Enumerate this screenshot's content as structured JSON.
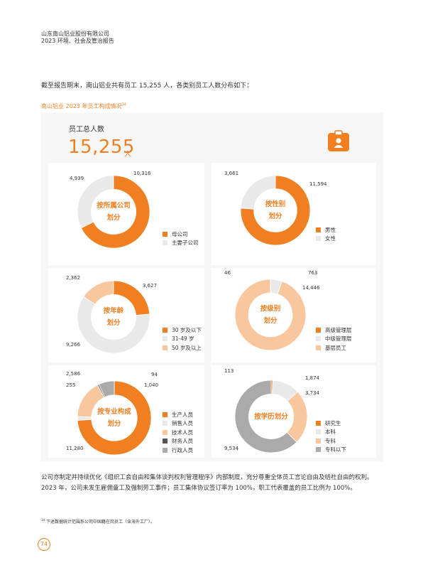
{
  "header": {
    "company": "山东南山铝业股份有限公司",
    "report": "2023 环境、社会及管治报告"
  },
  "intro": "截至报告期末，南山铝业共有员工 15,255 人，各类别员工人数分布如下：",
  "section_title": "南山铝业 2023 年员工构成情况",
  "section_note_ref": "34",
  "total": {
    "label": "员工总人数",
    "value": "15,255",
    "unit": "人",
    "icon": "employee-badge-icon"
  },
  "colors": {
    "orange": "#f07f21",
    "light_gray": "#e9e9e9",
    "peach": "#f9c79e",
    "dark_gray": "#888888",
    "mid_gray": "#b4b4b4"
  },
  "charts": {
    "company": {
      "title": "按所属公司\n划分",
      "segments": [
        {
          "name": "母公司",
          "value": 10316,
          "label": "10,316",
          "color": "#f07f21"
        },
        {
          "name": "主要子公司",
          "value": 4939,
          "label": "4,939",
          "color": "#e9e9e9"
        }
      ]
    },
    "gender": {
      "title": "按性别\n划分",
      "segments": [
        {
          "name": "男性",
          "value": 11594,
          "label": "11,594",
          "color": "#f07f21"
        },
        {
          "name": "女性",
          "value": 3661,
          "label": "3,661",
          "color": "#e9e9e9"
        }
      ]
    },
    "age": {
      "title": "按年龄\n划分",
      "segments": [
        {
          "name": "30 岁及以下",
          "value": 3627,
          "label": "3,627",
          "color": "#f07f21"
        },
        {
          "name": "31-49 岁",
          "value": 9266,
          "label": "9,266",
          "color": "#e9e9e9"
        },
        {
          "name": "50 岁及以上",
          "value": 2362,
          "label": "2,362",
          "color": "#f9c79e"
        }
      ]
    },
    "level": {
      "title": "按级别\n划分",
      "segments": [
        {
          "name": "高级管理层",
          "value": 46,
          "label": "46",
          "color": "#f07f21"
        },
        {
          "name": "中级管理层",
          "value": 763,
          "label": "763",
          "color": "#e9e9e9"
        },
        {
          "name": "基层员工",
          "value": 14446,
          "label": "14,446",
          "color": "#f9c79e"
        }
      ]
    },
    "profession": {
      "title": "按专业构成\n划分",
      "segments": [
        {
          "name": "生产人员",
          "value": 11280,
          "label": "11,280",
          "color": "#f07f21"
        },
        {
          "name": "销售人员",
          "value": 255,
          "label": "255",
          "color": "#e9e9e9"
        },
        {
          "name": "技术人员",
          "value": 2586,
          "label": "2,586",
          "color": "#f9c79e"
        },
        {
          "name": "财务人员",
          "value": 94,
          "label": "94",
          "color": "#555555"
        },
        {
          "name": "行政人员",
          "value": 1040,
          "label": "1,040",
          "color": "#aaaaaa"
        }
      ]
    },
    "education": {
      "title": "按学历划分",
      "segments": [
        {
          "name": "研究生",
          "value": 113,
          "label": "113",
          "color": "#f07f21"
        },
        {
          "name": "本科",
          "value": 1874,
          "label": "1,874",
          "color": "#e9e9e9"
        },
        {
          "name": "专科",
          "value": 3734,
          "label": "3,734",
          "color": "#f9c79e"
        },
        {
          "name": "专科以下",
          "value": 9534,
          "label": "9,534",
          "color": "#aaaaaa"
        }
      ]
    }
  },
  "paragraph": "公司亦制定并持续优化《组织工会自由和集体谈判权利管理程序》内部制度，充分尊重全体员工言论自由及结社自由的权利。2023 年，公司未发生雇佣童工及强制劳工事件；员工集体协议签订率为 100%，职工代表覆盖的员工比例为 100%。",
  "footnote": {
    "ref": "34",
    "text": "下述数据统计范围系公司中国籍在岗员工（含海外工厂）。"
  },
  "page_number": "74"
}
